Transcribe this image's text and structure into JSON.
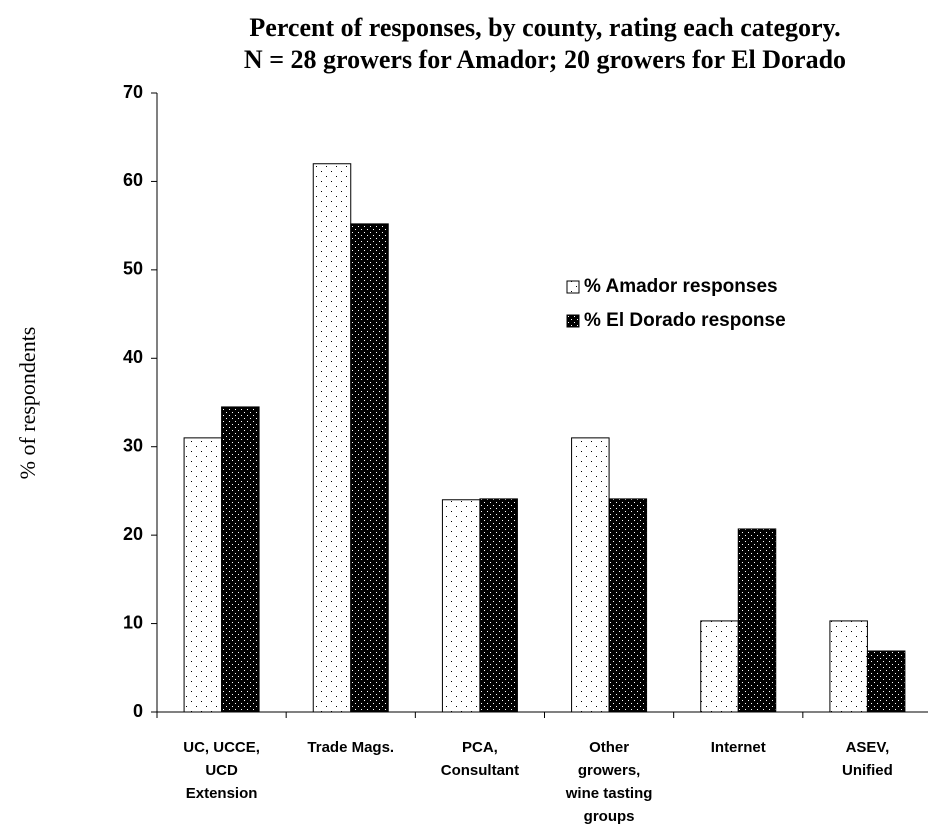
{
  "chart_data": {
    "type": "bar",
    "title": [
      "Percent of responses, by county, rating each category.",
      "N = 28 growers for Amador; 20 growers for El Dorado"
    ],
    "y_label": "% of respondents",
    "categories": [
      [
        "UC, UCCE,",
        "UCD",
        "Extension"
      ],
      [
        "Trade Mags."
      ],
      [
        "PCA,",
        "Consultant"
      ],
      [
        "Other",
        "growers,",
        "wine tasting",
        "groups"
      ],
      [
        "Internet"
      ],
      [
        "ASEV,",
        "Unified"
      ]
    ],
    "series": [
      {
        "name": "% Amador responses",
        "color": "#ffffff",
        "values": [
          31,
          62,
          24,
          31,
          10.3,
          10.3
        ]
      },
      {
        "name": "% El Dorado response",
        "color": "#000000",
        "values": [
          34.5,
          55.2,
          24.1,
          24.1,
          20.7,
          6.9
        ]
      }
    ],
    "ylim": [
      0,
      70
    ],
    "yticks": [
      0,
      10,
      20,
      30,
      40,
      50,
      60,
      70
    ],
    "grid": false
  }
}
